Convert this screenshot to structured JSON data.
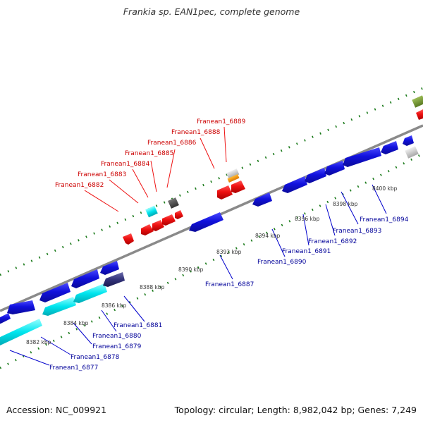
{
  "title": "Frankia sp. EAN1pec, complete genome",
  "accession": "Accession: NC_009921",
  "stats": "Topology: circular; Length: 8,982,042 bp; Genes: 7,249",
  "colors": {
    "forward_gene": "#ee1111",
    "reverse_gene": "#1111dd",
    "cyan_gene": "#00e5ee",
    "navy_gene": "#33337a",
    "backbone": "#8a8a8a",
    "tick": "#1a7a1a",
    "label_top": "#cc0000",
    "label_bottom": "#000099"
  },
  "kbp_ticks": [
    "8382 kbp",
    "8384 kbp",
    "8386 kbp",
    "8388 kbp",
    "8390 kbp",
    "8392 kbp",
    "8394 kbp",
    "8396 kbp",
    "8398 kbp",
    "8400 kbp"
  ],
  "top_labels": [
    "Franean1_6882",
    "Franean1_6883",
    "Franean1_6884",
    "Franean1_6885",
    "Franean1_6886",
    "Franean1_6888",
    "Franean1_6889"
  ],
  "bottom_labels": [
    "Franean1_6877",
    "Franean1_6878",
    "Franean1_6879",
    "Franean1_6880",
    "Franean1_6881",
    "Franean1_6887",
    "Franean1_6890",
    "Franean1_6891",
    "Franean1_6892",
    "Franean1_6893",
    "Franean1_6894"
  ]
}
